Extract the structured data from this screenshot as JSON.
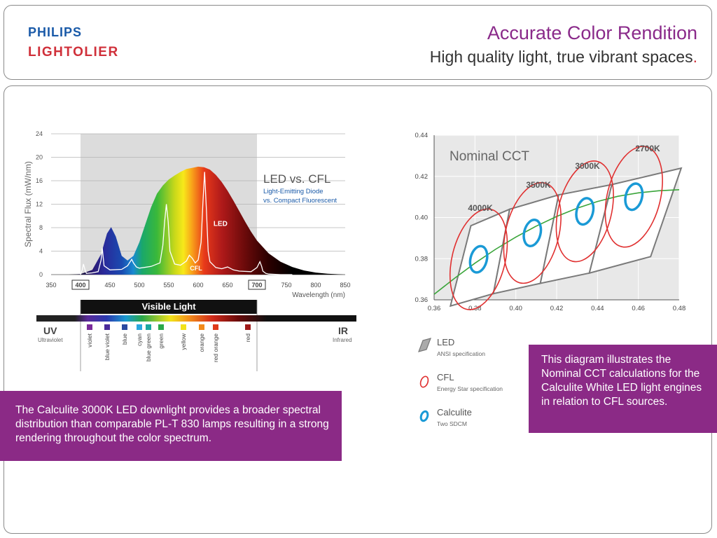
{
  "header": {
    "brand_philips": "PHILIPS",
    "brand_lightolier": "LIGHTOLIER",
    "title": "Accurate Color Rendition",
    "subtitle": "High quality light, true vibrant spaces",
    "subtitle_end": "."
  },
  "callouts": {
    "left": "The Calculite 3000K LED downlight provides a broader spectral distribution than comparable PL-T 830 lamps resulting in a strong rendering throughout the color spectrum.",
    "right": "This diagram illustrates the Nominal CCT calculations for the Calculite White LED light engines in relation to CFL sources."
  },
  "colors": {
    "accent_purple": "#8b2a86",
    "philips_blue": "#1a5aa8",
    "lightolier_red": "#d0303a",
    "cfl_red": "#e03030",
    "calculite_blue": "#1a9ad6",
    "planck_green": "#3aa53a"
  },
  "chart_data": [
    {
      "type": "area",
      "title": "LED vs. CFL",
      "subtitle_lines": [
        "Light-Emitting Diode",
        "vs. Compact Fluorescent"
      ],
      "xlabel": "Wavelength (nm)",
      "ylabel": "Spectral Flux (mW/nm)",
      "xlim": [
        350,
        850
      ],
      "ylim": [
        0,
        24
      ],
      "x_ticks": [
        350,
        400,
        450,
        500,
        550,
        600,
        650,
        700,
        750,
        800,
        850
      ],
      "y_ticks": [
        0,
        4,
        8,
        12,
        16,
        20,
        24
      ],
      "boxed_ticks": [
        400,
        700
      ],
      "grid": true,
      "visible_band": [
        400,
        700
      ],
      "series": [
        {
          "name": "LED",
          "x": [
            380,
            400,
            420,
            435,
            445,
            452,
            460,
            470,
            480,
            490,
            500,
            510,
            520,
            530,
            540,
            550,
            560,
            570,
            580,
            590,
            600,
            610,
            620,
            630,
            640,
            650,
            660,
            670,
            680,
            690,
            700,
            720,
            740,
            760,
            780,
            800,
            820,
            850
          ],
          "y": [
            0,
            0.1,
            0.8,
            3.5,
            7,
            8.1,
            6.5,
            3.2,
            2.4,
            3.2,
            5.5,
            8.5,
            11.5,
            13.8,
            15.2,
            16.2,
            16.9,
            17.5,
            18,
            18.2,
            18.4,
            18.3,
            17.9,
            17,
            15.8,
            14.3,
            12.6,
            10.8,
            9,
            7.3,
            5.8,
            3.6,
            2.2,
            1.3,
            0.7,
            0.35,
            0.15,
            0
          ]
        },
        {
          "name": "CFL",
          "x": [
            400,
            403,
            405,
            408,
            410,
            420,
            430,
            435,
            437,
            440,
            450,
            470,
            480,
            487,
            490,
            495,
            500,
            520,
            535,
            540,
            543,
            546,
            549,
            552,
            560,
            570,
            580,
            585,
            590,
            595,
            600,
            605,
            608,
            611,
            614,
            617,
            620,
            630,
            640,
            650,
            660,
            670,
            690,
            700,
            705,
            708,
            710,
            715,
            720,
            740,
            760
          ],
          "y": [
            0,
            0.8,
            1.8,
            0.7,
            0.2,
            0.3,
            0.5,
            2.5,
            4.5,
            1.5,
            0.8,
            0.9,
            1.5,
            2.6,
            2,
            1.3,
            1.1,
            1.4,
            2,
            5,
            9,
            12,
            9,
            4,
            1.8,
            1.6,
            2.3,
            3.3,
            2.8,
            2,
            2.5,
            5.5,
            12,
            17.5,
            11,
            4,
            2.2,
            1.2,
            1,
            1.3,
            0.8,
            0.6,
            0.5,
            1.2,
            2.2,
            1.4,
            0.6,
            0.2,
            0.1,
            0,
            0
          ]
        }
      ],
      "annotations": {
        "led_label": "LED",
        "cfl_label": "CFL",
        "visible_light": "Visible Light",
        "uv": "UV",
        "uv_sub": "Ultraviolet",
        "ir": "IR",
        "ir_sub": "Infrared"
      },
      "color_swatches": [
        {
          "name": "violet",
          "color": "#7a2a9a",
          "wavelength": 405
        },
        {
          "name": "blue violet",
          "color": "#4a2a9a",
          "wavelength": 425
        },
        {
          "name": "blue",
          "color": "#2a4aa0",
          "wavelength": 450
        },
        {
          "name": "cyan",
          "color": "#2aa8e0",
          "wavelength": 470
        },
        {
          "name": "blue green",
          "color": "#1aa8a0",
          "wavelength": 478
        },
        {
          "name": "green",
          "color": "#2aa84a",
          "wavelength": 495
        },
        {
          "name": "yellow",
          "color": "#f2e21a",
          "wavelength": 545
        },
        {
          "name": "orange",
          "color": "#f28a1a",
          "wavelength": 570
        },
        {
          "name": "red orange",
          "color": "#e03a1a",
          "wavelength": 590
        },
        {
          "name": "red",
          "color": "#a01a1a",
          "wavelength": 635
        }
      ]
    },
    {
      "type": "scatter",
      "title": "Nominal CCT",
      "xlim": [
        0.36,
        0.48
      ],
      "ylim": [
        0.36,
        0.44
      ],
      "x_ticks": [
        "0.36",
        "0.38",
        "0.40",
        "0.42",
        "0.44",
        "0.46",
        "0.48"
      ],
      "y_ticks": [
        "0.36",
        "0.38",
        "0.40",
        "0.42",
        "0.44"
      ],
      "grid": true,
      "cct_bins": [
        {
          "label": "4000K",
          "led_quad": [
            [
              0.368,
              0.357
            ],
            [
              0.378,
              0.396
            ],
            [
              0.397,
              0.404
            ],
            [
              0.389,
              0.363
            ]
          ],
          "cfl_ellipse": {
            "cx": 0.3818,
            "cy": 0.3797,
            "rx": 0.013,
            "ry": 0.025,
            "rot": 14
          },
          "calculite_ellipse": {
            "cx": 0.3818,
            "cy": 0.3797,
            "rx": 0.004,
            "ry": 0.0065,
            "rot": 14
          }
        },
        {
          "label": "3500K",
          "led_quad": [
            [
              0.389,
              0.363
            ],
            [
              0.397,
              0.404
            ],
            [
              0.421,
              0.411
            ],
            [
              0.412,
              0.368
            ]
          ],
          "cfl_ellipse": {
            "cx": 0.4081,
            "cy": 0.3925,
            "rx": 0.013,
            "ry": 0.025,
            "rot": 14
          },
          "calculite_ellipse": {
            "cx": 0.4081,
            "cy": 0.3925,
            "rx": 0.004,
            "ry": 0.0065,
            "rot": 14
          }
        },
        {
          "label": "3000K",
          "led_quad": [
            [
              0.412,
              0.368
            ],
            [
              0.421,
              0.411
            ],
            [
              0.447,
              0.416
            ],
            [
              0.436,
              0.373
            ]
          ],
          "cfl_ellipse": {
            "cx": 0.4338,
            "cy": 0.403,
            "rx": 0.013,
            "ry": 0.025,
            "rot": 14
          },
          "calculite_ellipse": {
            "cx": 0.4338,
            "cy": 0.403,
            "rx": 0.004,
            "ry": 0.0065,
            "rot": 14
          }
        },
        {
          "label": "2700K",
          "led_quad": [
            [
              0.436,
              0.373
            ],
            [
              0.447,
              0.416
            ],
            [
              0.481,
              0.424
            ],
            [
              0.466,
              0.381
            ]
          ],
          "cfl_ellipse": {
            "cx": 0.4578,
            "cy": 0.4101,
            "rx": 0.013,
            "ry": 0.025,
            "rot": 14
          },
          "calculite_ellipse": {
            "cx": 0.4578,
            "cy": 0.4101,
            "rx": 0.004,
            "ry": 0.0065,
            "rot": 14
          }
        }
      ],
      "planckian_locus": {
        "x": [
          0.36,
          0.37,
          0.38,
          0.39,
          0.4,
          0.41,
          0.42,
          0.43,
          0.44,
          0.45,
          0.46,
          0.47,
          0.48
        ],
        "y": [
          0.3627,
          0.3705,
          0.3778,
          0.3845,
          0.3905,
          0.3958,
          0.4005,
          0.4045,
          0.4078,
          0.4103,
          0.412,
          0.413,
          0.4135
        ]
      },
      "legend": [
        {
          "name": "LED",
          "sub": "ANSI specification"
        },
        {
          "name": "CFL",
          "sub": "Energy Star specification"
        },
        {
          "name": "Calculite",
          "sub": "Two SDCM"
        }
      ]
    }
  ]
}
